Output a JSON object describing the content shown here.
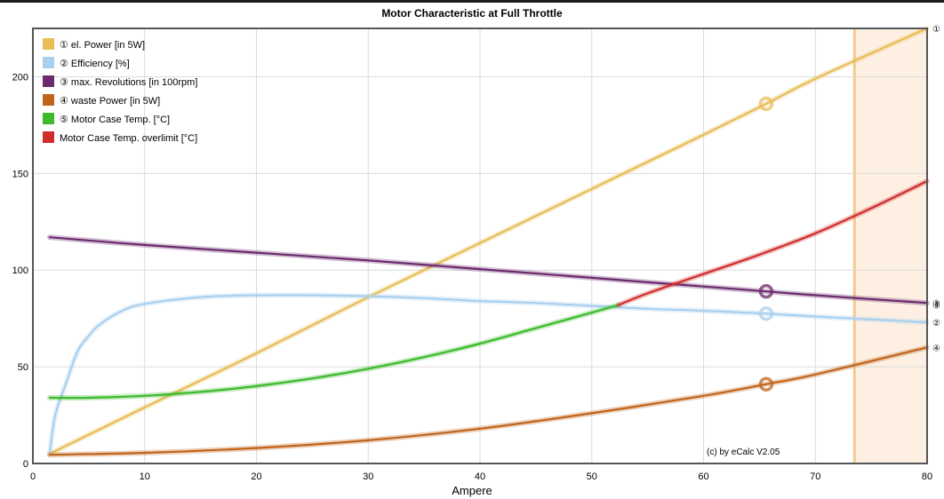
{
  "chart_data": {
    "type": "line",
    "title": "Motor Characteristic at Full Throttle",
    "xlabel": "Ampere",
    "ylabel": "",
    "xlim": [
      0,
      80
    ],
    "ylim": [
      0,
      225
    ],
    "xticks": [
      0,
      10,
      20,
      30,
      40,
      50,
      60,
      70,
      80
    ],
    "yticks": [
      0,
      50,
      100,
      150,
      200
    ],
    "grid": true,
    "legend_position": "top-left",
    "credit": "(c) by eCalc  V2.05",
    "shaded_region": {
      "x_from": 73.5,
      "x_to": 80,
      "color": "#fdf0e2",
      "edge_color": "#f5c98e"
    },
    "markers": {
      "x": 65.6
    },
    "series": [
      {
        "name": "① el. Power [in 5W]",
        "end_label": "①",
        "color": "#e8bd55",
        "x": [
          1.5,
          10,
          20,
          30,
          40,
          50,
          60,
          65.6,
          70,
          80
        ],
        "y": [
          5,
          29,
          57,
          86,
          114,
          142,
          170,
          186,
          199,
          225
        ]
      },
      {
        "name": "② Efficiency [%]",
        "end_label": "②",
        "color": "#a9cfee",
        "x": [
          1.5,
          2,
          3,
          4,
          5,
          6,
          8,
          10,
          15,
          20,
          25,
          30,
          35,
          40,
          45,
          50,
          55,
          60,
          65.6,
          70,
          75,
          80
        ],
        "y": [
          5,
          25,
          42,
          58,
          66,
          72,
          79,
          82.5,
          86,
          87,
          87,
          86.5,
          85.5,
          84,
          83,
          81.5,
          80,
          79,
          77.5,
          76,
          74.5,
          73
        ]
      },
      {
        "name": "③ max. Revolutions [in 100rpm]",
        "end_label": "③",
        "color": "#6b2a6e",
        "x": [
          1.5,
          10,
          20,
          30,
          40,
          50,
          60,
          65.6,
          70,
          80
        ],
        "y": [
          117,
          113,
          109,
          105,
          100.5,
          96,
          91.5,
          89,
          87,
          83
        ]
      },
      {
        "name": "④ waste Power [in 5W]",
        "end_label": "④",
        "color": "#c0641c",
        "x": [
          1.5,
          10,
          20,
          30,
          40,
          50,
          60,
          65.6,
          70,
          80
        ],
        "y": [
          4.5,
          5.5,
          8,
          12,
          18,
          26,
          35,
          41,
          46,
          60
        ]
      },
      {
        "name": "⑤ Motor Case Temp. [°C]",
        "end_label": "⑤",
        "color": "#3cba2c",
        "x": [
          1.5,
          5,
          10,
          15,
          20,
          25,
          30,
          35,
          40,
          45,
          50,
          52.4
        ],
        "y": [
          34,
          34,
          35,
          37,
          40,
          44,
          49,
          55,
          62,
          70,
          78,
          82
        ]
      },
      {
        "name": "Motor Case Temp. overlimit [°C]",
        "end_label": "",
        "color": "#d12d2d",
        "x": [
          52.4,
          55,
          60,
          65,
          70,
          75,
          80
        ],
        "y": [
          82,
          88,
          98,
          108,
          119,
          132,
          146
        ]
      }
    ]
  }
}
